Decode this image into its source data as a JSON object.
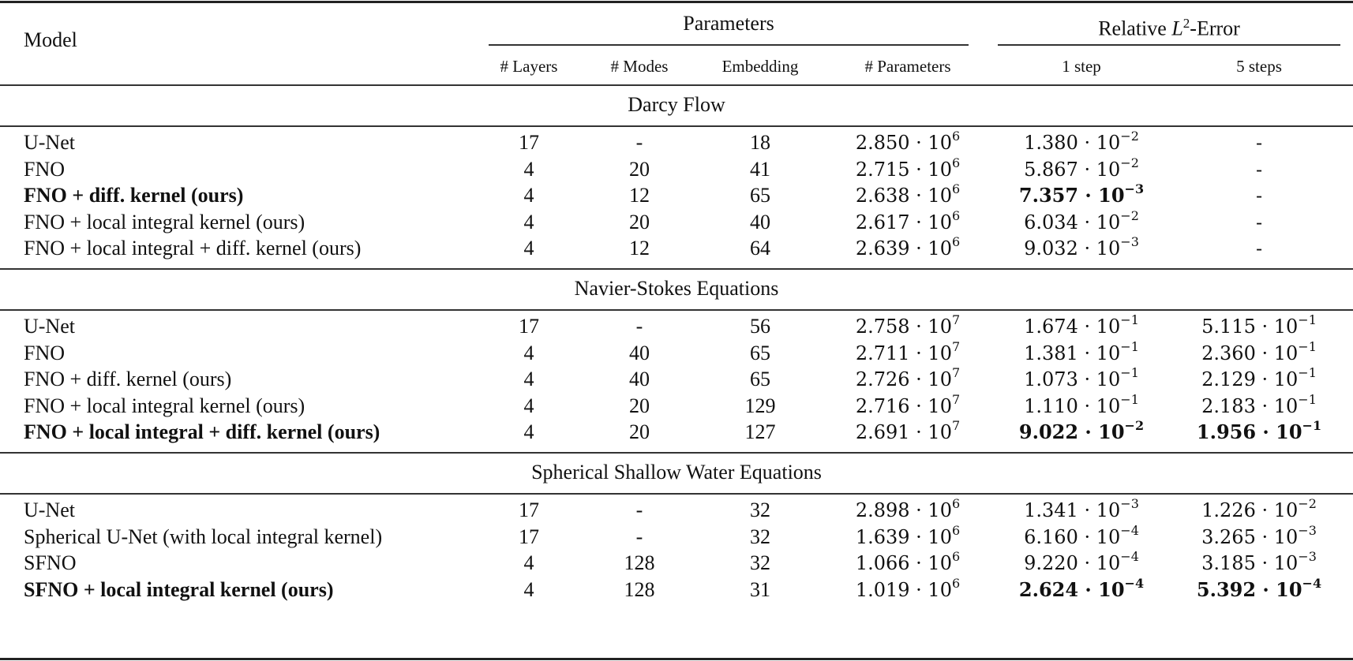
{
  "table": {
    "header": {
      "model": "Model",
      "group_parameters": "Parameters",
      "group_error_prefix": "Relative ",
      "group_error_L": "L",
      "group_error_exp": "2",
      "group_error_suffix": "-Error",
      "columns": [
        "# Layers",
        "# Modes",
        "Embedding",
        "# Parameters",
        "1 step",
        "5 steps"
      ]
    },
    "sections": [
      {
        "title": "Darcy Flow",
        "rows": [
          {
            "model": "U-Net",
            "bold": false,
            "layers": "17",
            "modes": "-",
            "embedding": "18",
            "params_m": "2.850",
            "params_e": "6",
            "err1_m": "1.380",
            "err1_e": "−2",
            "err1_bold": false,
            "err5_m": "-",
            "err5_e": "",
            "err5_bold": false
          },
          {
            "model": "FNO",
            "bold": false,
            "layers": "4",
            "modes": "20",
            "embedding": "41",
            "params_m": "2.715",
            "params_e": "6",
            "err1_m": "5.867",
            "err1_e": "−2",
            "err1_bold": false,
            "err5_m": "-",
            "err5_e": "",
            "err5_bold": false
          },
          {
            "model": "FNO + diff. kernel (ours)",
            "bold": true,
            "layers": "4",
            "modes": "12",
            "embedding": "65",
            "params_m": "2.638",
            "params_e": "6",
            "err1_m": "7.357",
            "err1_e": "−3",
            "err1_bold": true,
            "err5_m": "-",
            "err5_e": "",
            "err5_bold": false
          },
          {
            "model": "FNO + local integral kernel (ours)",
            "bold": false,
            "layers": "4",
            "modes": "20",
            "embedding": "40",
            "params_m": "2.617",
            "params_e": "6",
            "err1_m": "6.034",
            "err1_e": "−2",
            "err1_bold": false,
            "err5_m": "-",
            "err5_e": "",
            "err5_bold": false
          },
          {
            "model": "FNO + local integral + diff. kernel (ours)",
            "bold": false,
            "layers": "4",
            "modes": "12",
            "embedding": "64",
            "params_m": "2.639",
            "params_e": "6",
            "err1_m": "9.032",
            "err1_e": "−3",
            "err1_bold": false,
            "err5_m": "-",
            "err5_e": "",
            "err5_bold": false
          }
        ]
      },
      {
        "title": "Navier-Stokes Equations",
        "rows": [
          {
            "model": "U-Net",
            "bold": false,
            "layers": "17",
            "modes": "-",
            "embedding": "56",
            "params_m": "2.758",
            "params_e": "7",
            "err1_m": "1.674",
            "err1_e": "−1",
            "err1_bold": false,
            "err5_m": "5.115",
            "err5_e": "−1",
            "err5_bold": false
          },
          {
            "model": "FNO",
            "bold": false,
            "layers": "4",
            "modes": "40",
            "embedding": "65",
            "params_m": "2.711",
            "params_e": "7",
            "err1_m": "1.381",
            "err1_e": "−1",
            "err1_bold": false,
            "err5_m": "2.360",
            "err5_e": "−1",
            "err5_bold": false
          },
          {
            "model": "FNO + diff. kernel (ours)",
            "bold": false,
            "layers": "4",
            "modes": "40",
            "embedding": "65",
            "params_m": "2.726",
            "params_e": "7",
            "err1_m": "1.073",
            "err1_e": "−1",
            "err1_bold": false,
            "err5_m": "2.129",
            "err5_e": "−1",
            "err5_bold": false
          },
          {
            "model": "FNO + local integral kernel (ours)",
            "bold": false,
            "layers": "4",
            "modes": "20",
            "embedding": "129",
            "params_m": "2.716",
            "params_e": "7",
            "err1_m": "1.110",
            "err1_e": "−1",
            "err1_bold": false,
            "err5_m": "2.183",
            "err5_e": "−1",
            "err5_bold": false
          },
          {
            "model": "FNO + local integral + diff. kernel (ours)",
            "bold": true,
            "layers": "4",
            "modes": "20",
            "embedding": "127",
            "params_m": "2.691",
            "params_e": "7",
            "err1_m": "9.022",
            "err1_e": "−2",
            "err1_bold": true,
            "err5_m": "1.956",
            "err5_e": "−1",
            "err5_bold": true
          }
        ]
      },
      {
        "title": "Spherical Shallow Water Equations",
        "rows": [
          {
            "model": "U-Net",
            "bold": false,
            "layers": "17",
            "modes": "-",
            "embedding": "32",
            "params_m": "2.898",
            "params_e": "6",
            "err1_m": "1.341",
            "err1_e": "−3",
            "err1_bold": false,
            "err5_m": "1.226",
            "err5_e": "−2",
            "err5_bold": false
          },
          {
            "model": "Spherical U-Net (with local integral kernel)",
            "bold": false,
            "layers": "17",
            "modes": "-",
            "embedding": "32",
            "params_m": "1.639",
            "params_e": "6",
            "err1_m": "6.160",
            "err1_e": "−4",
            "err1_bold": false,
            "err5_m": "3.265",
            "err5_e": "−3",
            "err5_bold": false
          },
          {
            "model": "SFNO",
            "bold": false,
            "layers": "4",
            "modes": "128",
            "embedding": "32",
            "params_m": "1.066",
            "params_e": "6",
            "err1_m": "9.220",
            "err1_e": "−4",
            "err1_bold": false,
            "err5_m": "3.185",
            "err5_e": "−3",
            "err5_bold": false
          },
          {
            "model": "SFNO + local integral kernel (ours)",
            "bold": true,
            "layers": "4",
            "modes": "128",
            "embedding": "31",
            "params_m": "1.019",
            "params_e": "6",
            "err1_m": "2.624",
            "err1_e": "−4",
            "err1_bold": true,
            "err5_m": "5.392",
            "err5_e": "−4",
            "err5_bold": true
          }
        ]
      }
    ]
  }
}
